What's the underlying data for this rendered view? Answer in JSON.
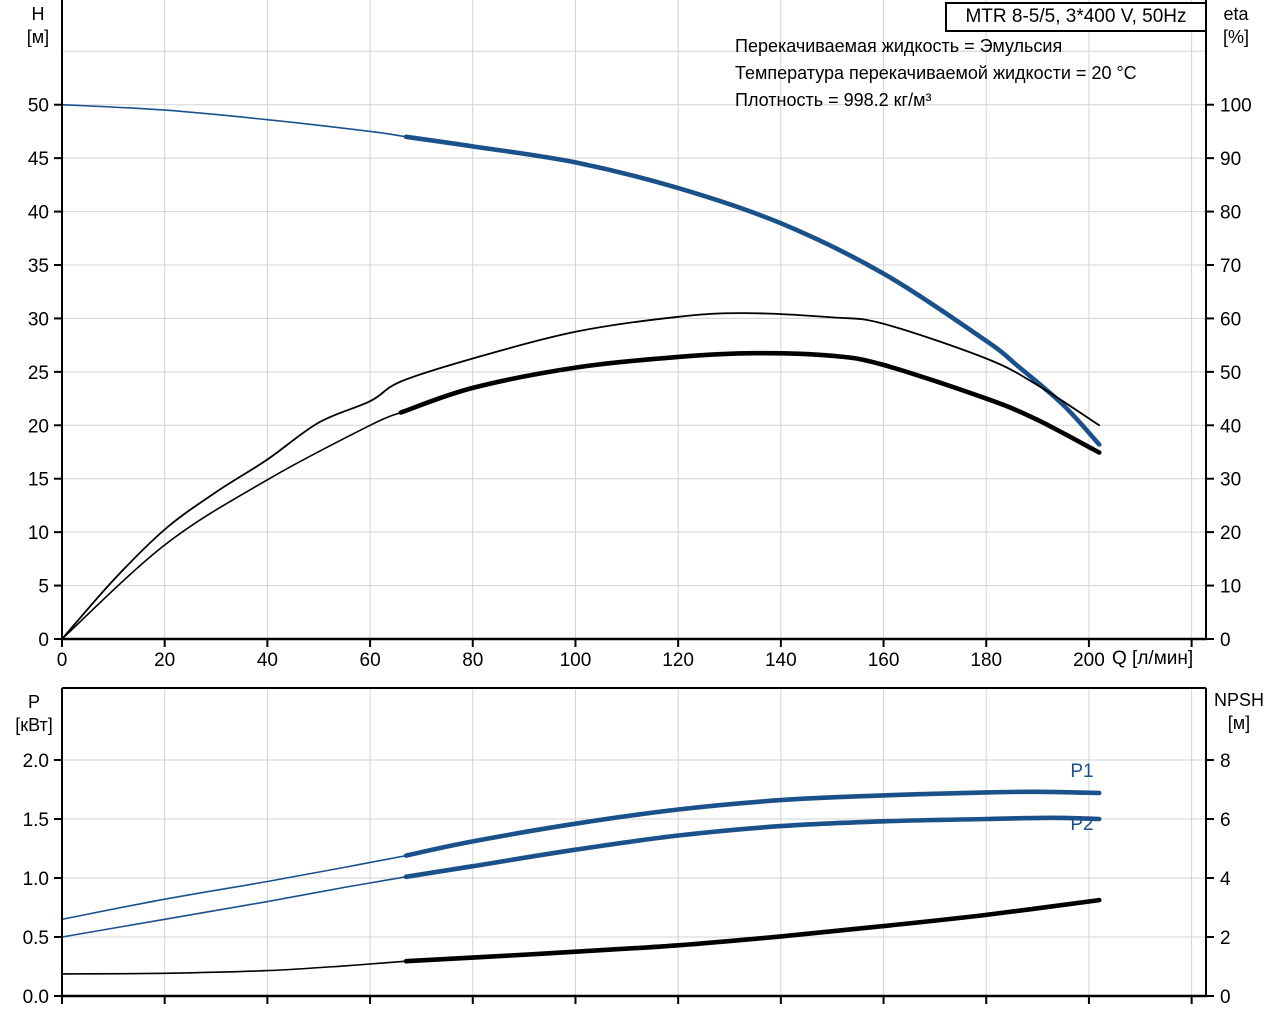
{
  "window": {
    "title_box": "MTR 8-5/5, 3*400 V, 50Hz"
  },
  "annotations": {
    "lines": [
      "Перекачиваемая жидкость = Эмульсия",
      "Температура перекачиваемой жидкости = 20 °C",
      "Плотность = 998.2 кг/м³"
    ]
  },
  "colors": {
    "curve_blue": "#1b518a",
    "curve_black": "#000000",
    "grid": "#d3d3d3",
    "axis": "#000000",
    "background": "#ffffff"
  },
  "chart_data": [
    {
      "id": "head-efficiency-chart",
      "type": "line",
      "x_axis": {
        "label": "Q [л/мин]",
        "min": 0,
        "max": 222.8,
        "tick_values": [
          0,
          20,
          40,
          60,
          80,
          100,
          120,
          140,
          160,
          180,
          200,
          220
        ],
        "tick_labels": [
          "0",
          "20",
          "40",
          "60",
          "80",
          "100",
          "120",
          "140",
          "160",
          "180",
          "200",
          ""
        ]
      },
      "y_left": {
        "label": "H",
        "unit": "[м]",
        "min": 0,
        "max": 59.8,
        "tick_values": [
          0,
          5,
          10,
          15,
          20,
          25,
          30,
          35,
          40,
          45,
          50
        ],
        "tick_labels": [
          "0",
          "5",
          "10",
          "15",
          "20",
          "25",
          "30",
          "35",
          "40",
          "45",
          "50"
        ],
        "grid_values": [
          5,
          10,
          15,
          20,
          25,
          30,
          35,
          40,
          45,
          50,
          55
        ]
      },
      "y_right": {
        "label": "eta",
        "unit": "[%]",
        "min": 0,
        "max": 119.6,
        "tick_values": [
          0,
          10,
          20,
          30,
          40,
          50,
          60,
          70,
          80,
          90,
          100
        ],
        "tick_labels": [
          "0",
          "10",
          "20",
          "30",
          "40",
          "50",
          "60",
          "70",
          "80",
          "90",
          "100"
        ]
      },
      "series": [
        {
          "name": "qh-head-curve",
          "label": "",
          "color": "blue",
          "axis": "left",
          "bold_from": 67,
          "points": [
            [
              0,
              50
            ],
            [
              20,
              49.5
            ],
            [
              40,
              48.6
            ],
            [
              60,
              47.5
            ],
            [
              67,
              47.0
            ],
            [
              80,
              46.1
            ],
            [
              100,
              44.6
            ],
            [
              120,
              42.2
            ],
            [
              140,
              38.9
            ],
            [
              160,
              34.2
            ],
            [
              180,
              27.9
            ],
            [
              186,
              25.6
            ],
            [
              195,
              21.9
            ],
            [
              202,
              18.2
            ]
          ]
        },
        {
          "name": "eta-thin-curve",
          "label": "",
          "color": "black",
          "axis": "right",
          "points": [
            [
              0,
              0
            ],
            [
              10,
              11
            ],
            [
              20,
              20.5
            ],
            [
              30,
              27.5
            ],
            [
              40,
              33.6
            ],
            [
              50,
              40.5
            ],
            [
              60,
              44.5
            ],
            [
              66,
              48.2
            ],
            [
              80,
              52.5
            ],
            [
              100,
              57.5
            ],
            [
              120,
              60.3
            ],
            [
              133,
              61.0
            ],
            [
              150,
              60.2
            ],
            [
              160,
              59.0
            ],
            [
              180,
              52.5
            ],
            [
              190,
              47.5
            ],
            [
              202,
              40.0
            ]
          ]
        },
        {
          "name": "eta-bold-curve",
          "label": "",
          "color": "black",
          "axis": "right",
          "bold_from": 66,
          "points": [
            [
              0,
              0
            ],
            [
              20,
              17.6
            ],
            [
              40,
              29.8
            ],
            [
              60,
              40.0
            ],
            [
              66,
              42.4
            ],
            [
              80,
              47.0
            ],
            [
              100,
              50.8
            ],
            [
              120,
              52.8
            ],
            [
              135,
              53.5
            ],
            [
              150,
              53.0
            ],
            [
              160,
              51.3
            ],
            [
              180,
              45.0
            ],
            [
              190,
              41.0
            ],
            [
              202,
              34.9
            ]
          ]
        }
      ]
    },
    {
      "id": "power-npsh-chart",
      "type": "line",
      "x_axis": {
        "label": "",
        "min": 0,
        "max": 222.8,
        "tick_values": [
          0,
          20,
          40,
          60,
          80,
          100,
          120,
          140,
          160,
          180,
          200,
          220
        ],
        "tick_labels": null
      },
      "y_left": {
        "label": "P",
        "unit": "[кВт]",
        "min": 0,
        "max": 2.61,
        "tick_values": [
          0,
          0.5,
          1.0,
          1.5,
          2.0
        ],
        "tick_labels": [
          "0.0",
          "0.5",
          "1.0",
          "1.5",
          "2.0"
        ],
        "grid_values": [
          0.5,
          1.0,
          1.5,
          2.0
        ]
      },
      "y_right": {
        "label": "NPSH",
        "unit": "[м]",
        "min": 0,
        "max": 10.44,
        "tick_values": [
          0,
          2,
          4,
          6,
          8
        ],
        "tick_labels": [
          "0",
          "2",
          "4",
          "6",
          "8"
        ]
      },
      "series": [
        {
          "name": "p1-power-curve",
          "label": "P1",
          "color": "blue",
          "axis": "left",
          "bold_from": 67,
          "points": [
            [
              0,
              0.65
            ],
            [
              20,
              0.82
            ],
            [
              40,
              0.97
            ],
            [
              55,
              1.09
            ],
            [
              67,
              1.19
            ],
            [
              80,
              1.31
            ],
            [
              100,
              1.46
            ],
            [
              120,
              1.58
            ],
            [
              140,
              1.66
            ],
            [
              160,
              1.7
            ],
            [
              180,
              1.725
            ],
            [
              190,
              1.73
            ],
            [
              202,
              1.72
            ]
          ]
        },
        {
          "name": "p2-power-curve",
          "label": "P2",
          "color": "blue",
          "axis": "left",
          "bold_from": 67,
          "points": [
            [
              0,
              0.5
            ],
            [
              20,
              0.65
            ],
            [
              40,
              0.8
            ],
            [
              55,
              0.92
            ],
            [
              67,
              1.01
            ],
            [
              80,
              1.1
            ],
            [
              100,
              1.24
            ],
            [
              120,
              1.36
            ],
            [
              140,
              1.44
            ],
            [
              160,
              1.48
            ],
            [
              180,
              1.5
            ],
            [
              193,
              1.51
            ],
            [
              202,
              1.5
            ]
          ]
        },
        {
          "name": "npsh-curve",
          "label": "",
          "color": "black",
          "axis": "right",
          "bold_from": 67,
          "points": [
            [
              0,
              0.75
            ],
            [
              20,
              0.77
            ],
            [
              40,
              0.86
            ],
            [
              55,
              1.02
            ],
            [
              67,
              1.18
            ],
            [
              80,
              1.3
            ],
            [
              100,
              1.5
            ],
            [
              120,
              1.72
            ],
            [
              140,
              2.02
            ],
            [
              160,
              2.37
            ],
            [
              180,
              2.75
            ],
            [
              202,
              3.25
            ]
          ]
        }
      ]
    }
  ]
}
